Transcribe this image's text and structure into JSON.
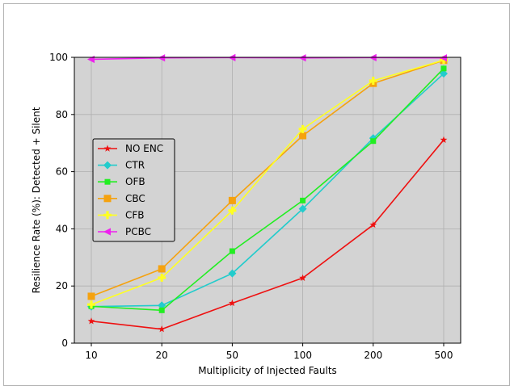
{
  "chart_data": {
    "type": "line",
    "title": "",
    "xlabel": "Multiplicity of Injected Faults",
    "ylabel": "Resilience Rate (%): Detected + Silent",
    "categories": [
      "10",
      "20",
      "50",
      "100",
      "200",
      "500"
    ],
    "ylim": [
      0,
      100
    ],
    "yticks": [
      0,
      20,
      40,
      60,
      80,
      100
    ],
    "grid": true,
    "background": "#d3d3d3",
    "legend_position": "center-left",
    "series": [
      {
        "name": "NO ENC",
        "color": "#ee1111",
        "marker": "star",
        "values": [
          7.7,
          4.9,
          14.0,
          22.8,
          41.4,
          71.1
        ]
      },
      {
        "name": "CTR",
        "color": "#22cccc",
        "marker": "diamond",
        "values": [
          12.8,
          13.2,
          24.4,
          47.0,
          71.7,
          94.3
        ]
      },
      {
        "name": "OFB",
        "color": "#22ee22",
        "marker": "square-small",
        "values": [
          12.9,
          11.5,
          32.2,
          49.9,
          70.7,
          96.1
        ]
      },
      {
        "name": "CBC",
        "color": "#f5a20f",
        "marker": "square",
        "values": [
          16.4,
          26.0,
          49.9,
          72.6,
          90.9,
          98.9
        ]
      },
      {
        "name": "CFB",
        "color": "#ffff22",
        "marker": "plus",
        "values": [
          13.5,
          22.9,
          46.4,
          74.9,
          91.8,
          99.0
        ]
      },
      {
        "name": "PCBC",
        "color": "#ee22ee",
        "marker": "triangle-left",
        "values": [
          99.3,
          99.8,
          99.9,
          99.8,
          99.9,
          99.8
        ]
      }
    ]
  }
}
